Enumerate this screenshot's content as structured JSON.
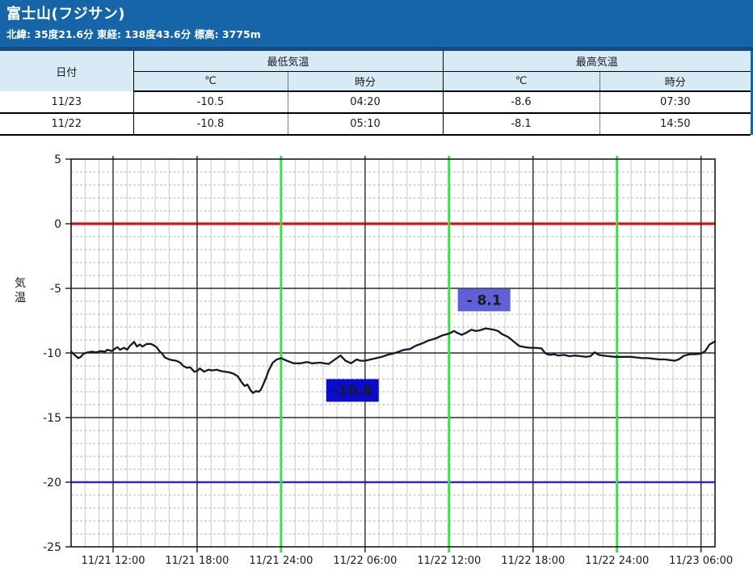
{
  "header": {
    "title": "富士山(フジサン)",
    "subtitle": "北緯: 35度21.6分 東経: 138度43.6分 標高: 3775m",
    "band_color": "#1565a8",
    "rule_color": "#134a80"
  },
  "table": {
    "date_header": "日付",
    "min_group": "最低気温",
    "max_group": "最高気温",
    "sub_headers": [
      "℃",
      "時分",
      "℃",
      "時分"
    ],
    "rows": [
      [
        "11/23",
        "-10.5",
        "04:20",
        "-8.6",
        "07:30"
      ],
      [
        "11/22",
        "-10.8",
        "05:10",
        "-8.1",
        "14:50"
      ]
    ],
    "header_bg": "#d9eaf7"
  },
  "chart_data": {
    "type": "line",
    "title": "",
    "xlabel": "",
    "ylabel": "気温",
    "grid": true,
    "legend": false,
    "y_axis": {
      "min": -25,
      "max": 5,
      "major_step": 5,
      "minor_step": 1
    },
    "x_axis": {
      "start_hour": 0,
      "end_hour": 46,
      "minor_step_hours": 1,
      "tick_labels": [
        {
          "hour": 3,
          "label": "11/21 12:00"
        },
        {
          "hour": 9,
          "label": "11/21 18:00"
        },
        {
          "hour": 15,
          "label": "11/21 24:00"
        },
        {
          "hour": 21,
          "label": "11/22 06:00"
        },
        {
          "hour": 27,
          "label": "11/22 12:00"
        },
        {
          "hour": 33,
          "label": "11/22 18:00"
        },
        {
          "hour": 39,
          "label": "11/22 24:00"
        },
        {
          "hour": 45,
          "label": "11/23 06:00"
        }
      ],
      "black_line_hours": [
        3,
        9,
        21,
        33,
        45
      ],
      "green_line_hours": [
        15,
        27,
        39
      ]
    },
    "reference_lines": [
      {
        "temp": 0,
        "color": "#dd1111",
        "width": 3.2,
        "name": "zero-line"
      },
      {
        "temp": -20,
        "color": "#2a2acc",
        "width": 2.4,
        "name": "minus20-line"
      }
    ],
    "colors": {
      "line": "#16162c",
      "green_gridline": "#3ddd50",
      "major_grid": "#2b2b2b",
      "minor_grid_v": "#c9c9c9",
      "minor_grid_h": "#b4b4b4"
    },
    "series": [
      {
        "name": "気温",
        "points": [
          [
            0,
            -9.9
          ],
          [
            0.2,
            -10.1
          ],
          [
            0.5,
            -10.4
          ],
          [
            0.7,
            -10.3
          ],
          [
            0.9,
            -10.05
          ],
          [
            1.2,
            -9.95
          ],
          [
            1.5,
            -9.9
          ],
          [
            1.8,
            -9.95
          ],
          [
            2.1,
            -9.85
          ],
          [
            2.4,
            -9.9
          ],
          [
            2.6,
            -9.75
          ],
          [
            2.9,
            -9.85
          ],
          [
            3.1,
            -9.7
          ],
          [
            3.3,
            -9.55
          ],
          [
            3.5,
            -9.75
          ],
          [
            3.8,
            -9.6
          ],
          [
            4,
            -9.75
          ],
          [
            4.2,
            -9.45
          ],
          [
            4.5,
            -9.15
          ],
          [
            4.7,
            -9.5
          ],
          [
            4.9,
            -9.35
          ],
          [
            5.1,
            -9.5
          ],
          [
            5.4,
            -9.3
          ],
          [
            5.7,
            -9.3
          ],
          [
            5.9,
            -9.4
          ],
          [
            6.1,
            -9.55
          ],
          [
            6.3,
            -9.85
          ],
          [
            6.5,
            -10.05
          ],
          [
            6.7,
            -10.35
          ],
          [
            7,
            -10.5
          ],
          [
            7.2,
            -10.55
          ],
          [
            7.5,
            -10.6
          ],
          [
            7.8,
            -10.75
          ],
          [
            8,
            -11
          ],
          [
            8.3,
            -11.15
          ],
          [
            8.5,
            -11.1
          ],
          [
            8.8,
            -11.45
          ],
          [
            9,
            -11.4
          ],
          [
            9.2,
            -11.2
          ],
          [
            9.5,
            -11.45
          ],
          [
            9.8,
            -11.3
          ],
          [
            10.1,
            -11.35
          ],
          [
            10.4,
            -11.3
          ],
          [
            10.7,
            -11.4
          ],
          [
            11,
            -11.45
          ],
          [
            11.3,
            -11.5
          ],
          [
            11.6,
            -11.6
          ],
          [
            11.9,
            -11.8
          ],
          [
            12.2,
            -12.3
          ],
          [
            12.4,
            -12.55
          ],
          [
            12.6,
            -12.45
          ],
          [
            12.8,
            -12.85
          ],
          [
            13,
            -13.1
          ],
          [
            13.2,
            -12.95
          ],
          [
            13.4,
            -13
          ],
          [
            13.55,
            -12.85
          ],
          [
            13.7,
            -12.5
          ],
          [
            13.9,
            -12
          ],
          [
            14.1,
            -11.4
          ],
          [
            14.4,
            -10.75
          ],
          [
            14.7,
            -10.5
          ],
          [
            15,
            -10.4
          ],
          [
            15.4,
            -10.6
          ],
          [
            15.9,
            -10.8
          ],
          [
            16.4,
            -10.8
          ],
          [
            16.85,
            -10.7
          ],
          [
            17.2,
            -10.8
          ],
          [
            17.8,
            -10.75
          ],
          [
            18.4,
            -10.85
          ],
          [
            18.85,
            -10.5
          ],
          [
            19.25,
            -10.2
          ],
          [
            19.6,
            -10.6
          ],
          [
            20,
            -10.8
          ],
          [
            20.4,
            -10.5
          ],
          [
            20.65,
            -10.6
          ],
          [
            21,
            -10.6
          ],
          [
            21.4,
            -10.5
          ],
          [
            21.8,
            -10.4
          ],
          [
            22.2,
            -10.3
          ],
          [
            22.6,
            -10.15
          ],
          [
            23,
            -10.05
          ],
          [
            23.4,
            -9.9
          ],
          [
            23.8,
            -9.75
          ],
          [
            24.2,
            -9.7
          ],
          [
            24.6,
            -9.45
          ],
          [
            25.1,
            -9.25
          ],
          [
            25.5,
            -9.05
          ],
          [
            26.1,
            -8.85
          ],
          [
            26.5,
            -8.65
          ],
          [
            27,
            -8.5
          ],
          [
            27.35,
            -8.3
          ],
          [
            27.6,
            -8.45
          ],
          [
            27.9,
            -8.6
          ],
          [
            28.2,
            -8.45
          ],
          [
            28.6,
            -8.2
          ],
          [
            28.9,
            -8.3
          ],
          [
            29.2,
            -8.25
          ],
          [
            29.6,
            -8.1
          ],
          [
            29.9,
            -8.15
          ],
          [
            30.2,
            -8.2
          ],
          [
            30.5,
            -8.3
          ],
          [
            30.8,
            -8.55
          ],
          [
            31.2,
            -8.75
          ],
          [
            31.6,
            -9.1
          ],
          [
            32,
            -9.45
          ],
          [
            32.4,
            -9.55
          ],
          [
            32.8,
            -9.6
          ],
          [
            33.2,
            -9.6
          ],
          [
            33.6,
            -9.65
          ],
          [
            33.9,
            -10.05
          ],
          [
            34.2,
            -10.15
          ],
          [
            34.5,
            -10.1
          ],
          [
            34.8,
            -10.2
          ],
          [
            35.2,
            -10.15
          ],
          [
            35.6,
            -10.25
          ],
          [
            36,
            -10.2
          ],
          [
            36.4,
            -10.25
          ],
          [
            36.8,
            -10.3
          ],
          [
            37.1,
            -10.25
          ],
          [
            37.4,
            -9.95
          ],
          [
            37.7,
            -10.15
          ],
          [
            38,
            -10.2
          ],
          [
            38.4,
            -10.25
          ],
          [
            38.8,
            -10.3
          ],
          [
            39.1,
            -10.3
          ],
          [
            39.5,
            -10.3
          ],
          [
            40,
            -10.3
          ],
          [
            40.4,
            -10.35
          ],
          [
            40.8,
            -10.4
          ],
          [
            41.2,
            -10.4
          ],
          [
            41.6,
            -10.45
          ],
          [
            42,
            -10.5
          ],
          [
            42.4,
            -10.5
          ],
          [
            42.8,
            -10.55
          ],
          [
            43.1,
            -10.6
          ],
          [
            43.4,
            -10.5
          ],
          [
            43.8,
            -10.2
          ],
          [
            44.2,
            -10.1
          ],
          [
            44.6,
            -10.1
          ],
          [
            45,
            -10.05
          ],
          [
            45.3,
            -9.85
          ],
          [
            45.6,
            -9.35
          ],
          [
            46,
            -9.1
          ]
        ]
      }
    ],
    "annotations": [
      {
        "text": "-10.8",
        "hour": 20.1,
        "temp": -12.9,
        "bg": "#0b0bcd",
        "fg": "#ffffff",
        "name": "min-temp-annotation"
      },
      {
        "text": "- 8.1",
        "hour": 29.5,
        "temp": -5.9,
        "bg": "#5f5fd7",
        "fg": "#ffffff",
        "name": "max-temp-annotation"
      }
    ]
  }
}
